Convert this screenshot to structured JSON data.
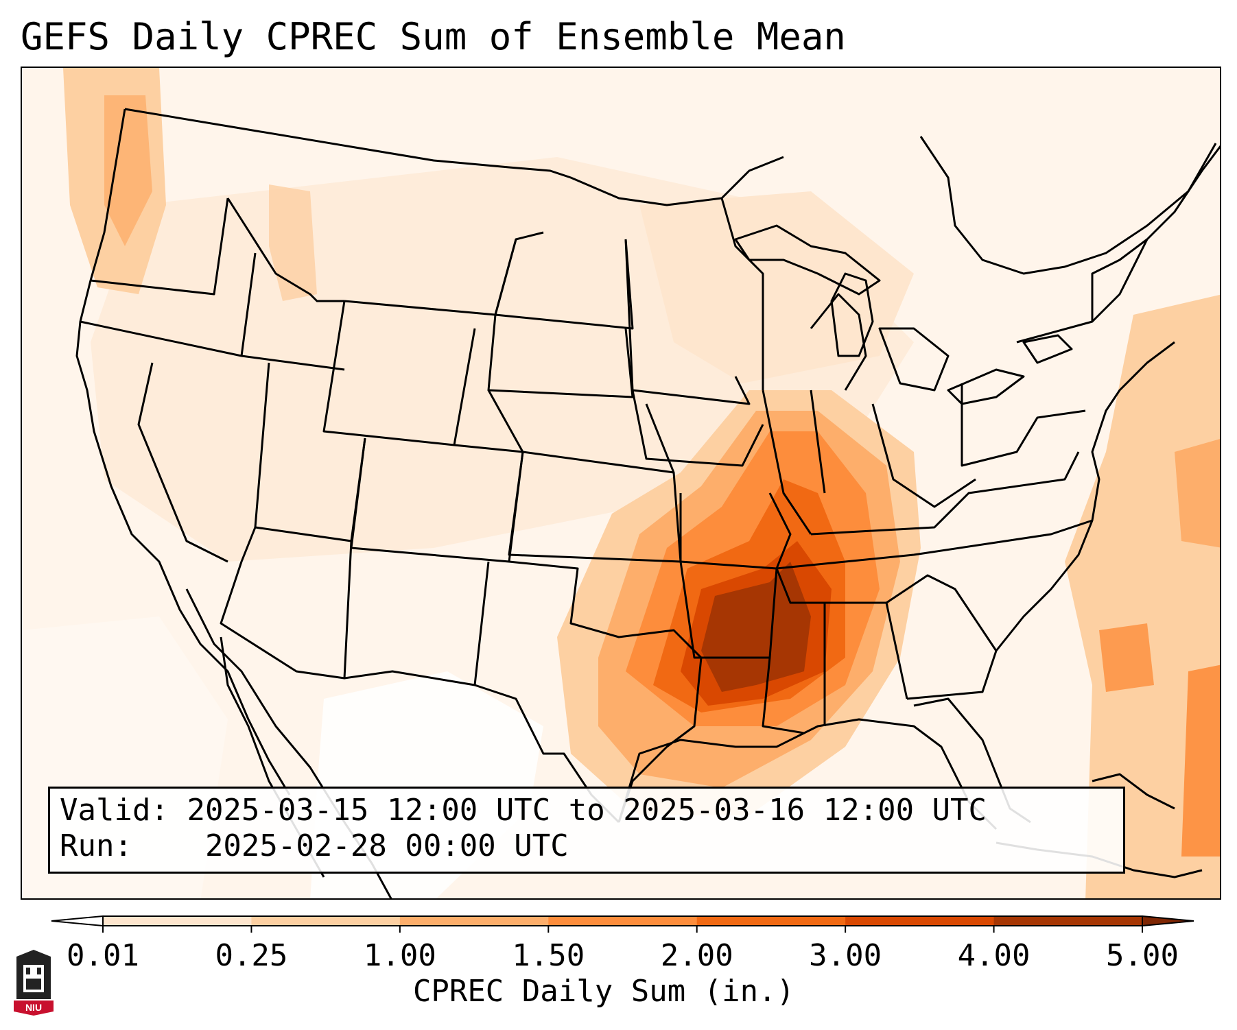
{
  "title": "GEFS Daily CPREC Sum of Ensemble Mean",
  "info": {
    "valid_label": "Valid:",
    "valid_text": "2025-03-15 12:00 UTC to 2025-03-16 12:00 UTC",
    "run_label": "Run:",
    "run_text": "2025-02-28 00:00 UTC"
  },
  "colorbar": {
    "label": "CPREC Daily Sum (in.)",
    "ticks": [
      "0.01",
      "0.25",
      "1.00",
      "1.50",
      "2.00",
      "3.00",
      "4.00",
      "5.00"
    ],
    "colors": [
      "#fff5eb",
      "#fee6ce",
      "#fdd0a2",
      "#fdae6b",
      "#fd8d3c",
      "#f16913",
      "#d94801",
      "#a63603",
      "#7f2704"
    ],
    "under_color": "#ffffff",
    "over_color": "#7f2704"
  },
  "logo": {
    "text": "NIU",
    "accent": "#c8102e"
  }
}
